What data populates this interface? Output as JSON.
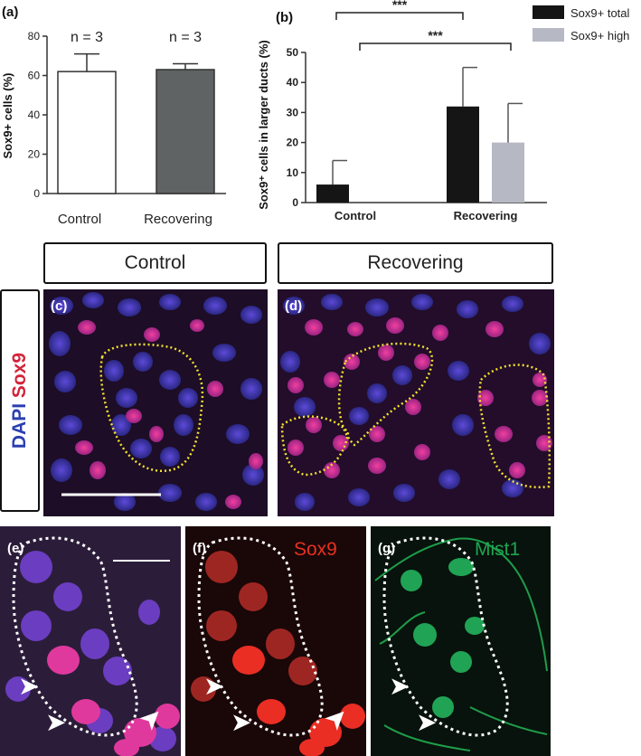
{
  "panel_labels": {
    "a": "(a)",
    "b": "(b)",
    "c": "(c)",
    "d": "(d)",
    "e": "(e)",
    "f": "(f)",
    "g": "(g)"
  },
  "chart_data": [
    {
      "type": "bar",
      "ylabel": "Sox9+ cells (%)",
      "categories": [
        "Control",
        "Recovering"
      ],
      "values": [
        62,
        63
      ],
      "errors": [
        9,
        3
      ],
      "annotations": [
        "n = 3",
        "n = 3"
      ],
      "ylim": [
        0,
        80
      ],
      "yticks": [
        0,
        20,
        40,
        60,
        80
      ],
      "colors": [
        "#ffffff",
        "#5f6364"
      ]
    },
    {
      "type": "bar",
      "ylabel": "Sox9⁺ cells in larger ducts (%)",
      "categories": [
        "Control",
        "Recovering"
      ],
      "series": [
        {
          "name": "Sox9+ total",
          "values": [
            6,
            32
          ],
          "errors": [
            8,
            13
          ],
          "color": "#151515"
        },
        {
          "name": "Sox9+ high",
          "values": [
            0,
            20
          ],
          "errors": [
            0,
            13
          ],
          "color": "#b6b9c4"
        }
      ],
      "ylim": [
        0,
        50
      ],
      "yticks": [
        0,
        10,
        20,
        30,
        40,
        50
      ],
      "significance": [
        "***",
        "***"
      ],
      "legend_position": "top-right"
    }
  ],
  "headers": {
    "control": "Control",
    "recovering": "Recovering"
  },
  "stain": {
    "dapi": "DAPI",
    "sox9": "Sox9"
  },
  "channel_labels": {
    "sox9": "Sox9",
    "mist1": "Mist1"
  }
}
